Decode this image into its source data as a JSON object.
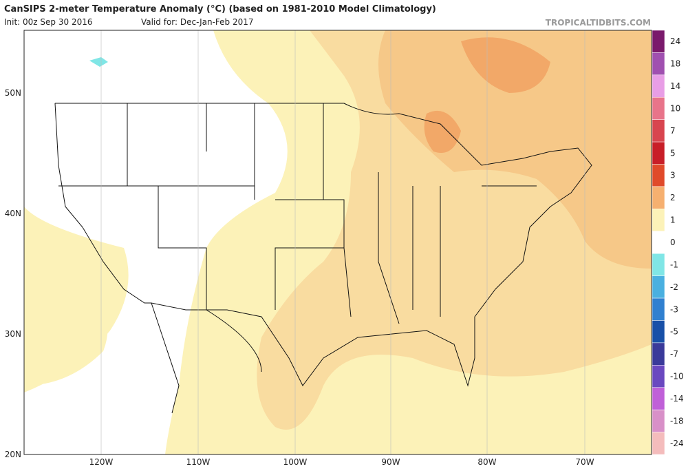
{
  "header": {
    "title": "CanSIPS 2-meter Temperature Anomaly (°C) (based on 1981-2010 Model Climatology)",
    "init": "Init: 00z Sep 30 2016",
    "valid": "Valid for: Dec-Jan-Feb 2017",
    "site": "TROPICALTIDBITS.COM"
  },
  "map": {
    "lat_labels": [
      "50N",
      "40N",
      "30N",
      "20N"
    ],
    "lon_labels": [
      "120W",
      "110W",
      "100W",
      "90W",
      "80W",
      "70W"
    ]
  },
  "colorbar": {
    "levels": [
      {
        "label": "24",
        "color": "#7a1a6c"
      },
      {
        "label": "18",
        "color": "#a050b0"
      },
      {
        "label": "14",
        "color": "#e89ee6"
      },
      {
        "label": "10",
        "color": "#e8748a"
      },
      {
        "label": "7",
        "color": "#d8454f"
      },
      {
        "label": "5",
        "color": "#c81e28"
      },
      {
        "label": "3",
        "color": "#e04a2a"
      },
      {
        "label": "2",
        "color": "#f6b070"
      },
      {
        "label": "1",
        "color": "#fcf2b8"
      },
      {
        "label": "0",
        "color": "#ffffff"
      },
      {
        "label": "-1",
        "color": "#80e6e6"
      },
      {
        "label": "-2",
        "color": "#4ab0e0"
      },
      {
        "label": "-3",
        "color": "#3080d0"
      },
      {
        "label": "-5",
        "color": "#1850a8"
      },
      {
        "label": "-7",
        "color": "#3a3a9a"
      },
      {
        "label": "-10",
        "color": "#6a48c0"
      },
      {
        "label": "-14",
        "color": "#c060d8"
      },
      {
        "label": "-18",
        "color": "#d890c8"
      },
      {
        "label": "-24",
        "color": "#f4bcbc"
      }
    ]
  }
}
